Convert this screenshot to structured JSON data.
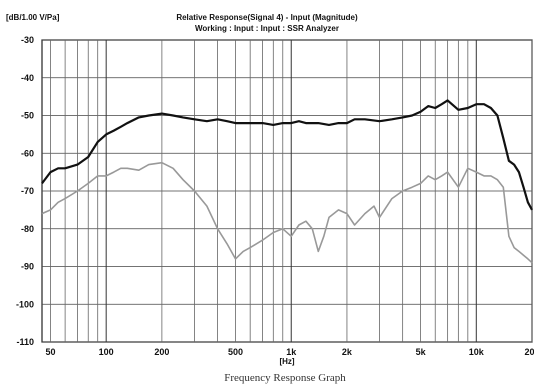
{
  "chart_data": {
    "type": "line",
    "title": "Relative Response(Signal 4) - Input (Magnitude)",
    "subtitle": "Working : Input : Input : SSR Analyzer",
    "ylabel": "[dB/1.00 V/Pa]",
    "xlabel": "[Hz]",
    "caption": "Frequency Response Graph",
    "x_scale": "log",
    "xlim": [
      45,
      20000
    ],
    "ylim": [
      -110,
      -30
    ],
    "yticks": [
      -30,
      -40,
      -50,
      -60,
      -70,
      -80,
      -90,
      -100,
      -110
    ],
    "ytick_labels": [
      "-30",
      "-40",
      "-50",
      "-60",
      "-70",
      "-80",
      "-90",
      "-100",
      "-110"
    ],
    "xticks": [
      50,
      100,
      200,
      500,
      1000,
      2000,
      5000,
      10000,
      20000
    ],
    "xtick_labels": [
      "50",
      "100",
      "200",
      "500",
      "1k",
      "2k",
      "5k",
      "10k",
      "20k"
    ],
    "grid": true,
    "series": [
      {
        "color": "#111111",
        "x": [
          45,
          50,
          55,
          60,
          70,
          80,
          90,
          100,
          110,
          120,
          130,
          150,
          170,
          200,
          230,
          260,
          300,
          350,
          400,
          450,
          500,
          600,
          700,
          800,
          900,
          1000,
          1100,
          1200,
          1400,
          1600,
          1800,
          2000,
          2200,
          2500,
          3000,
          3500,
          4000,
          4500,
          5000,
          5500,
          6000,
          6500,
          7000,
          8000,
          9000,
          10000,
          11000,
          12000,
          13000,
          14000,
          15000,
          16000,
          17000,
          18000,
          19000,
          20000
        ],
        "y": [
          -68,
          -65,
          -64,
          -64,
          -63,
          -61,
          -57,
          -55,
          -54,
          -53,
          -52,
          -50.5,
          -50,
          -49.5,
          -50,
          -50.5,
          -51,
          -51.5,
          -51,
          -51.5,
          -52,
          -52,
          -52,
          -52.5,
          -52,
          -52,
          -51.5,
          -52,
          -52,
          -52.5,
          -52,
          -52,
          -51,
          -51,
          -51.5,
          -51,
          -50.5,
          -50,
          -49,
          -47.5,
          -48,
          -47,
          -46,
          -48.5,
          -48,
          -47,
          -47,
          -48,
          -50,
          -56,
          -62,
          -63,
          -65,
          -69,
          -73,
          -75
        ]
      },
      {
        "color": "#999999",
        "x": [
          45,
          50,
          55,
          60,
          70,
          80,
          90,
          100,
          110,
          120,
          130,
          150,
          170,
          200,
          230,
          260,
          300,
          350,
          400,
          450,
          500,
          550,
          600,
          700,
          800,
          900,
          1000,
          1100,
          1200,
          1300,
          1400,
          1500,
          1600,
          1800,
          2000,
          2200,
          2500,
          2800,
          3000,
          3500,
          4000,
          4500,
          5000,
          5500,
          6000,
          6500,
          7000,
          8000,
          9000,
          10000,
          11000,
          12000,
          13000,
          14000,
          15000,
          16000,
          17000,
          18000,
          19000,
          20000
        ],
        "y": [
          -76,
          -75,
          -73,
          -72,
          -70,
          -68,
          -66,
          -66,
          -65,
          -64,
          -64,
          -64.5,
          -63,
          -62.5,
          -64,
          -67,
          -70,
          -74,
          -80,
          -84,
          -88,
          -86,
          -85,
          -83,
          -81,
          -80,
          -82,
          -79,
          -78,
          -80,
          -86,
          -82,
          -77,
          -75,
          -76,
          -79,
          -76,
          -74,
          -77,
          -72,
          -70,
          -69,
          -68,
          -66,
          -67,
          -66,
          -65,
          -69,
          -64,
          -65,
          -66,
          -66,
          -67,
          -69,
          -82,
          -85,
          -86,
          -87,
          -88,
          -89
        ]
      }
    ]
  }
}
